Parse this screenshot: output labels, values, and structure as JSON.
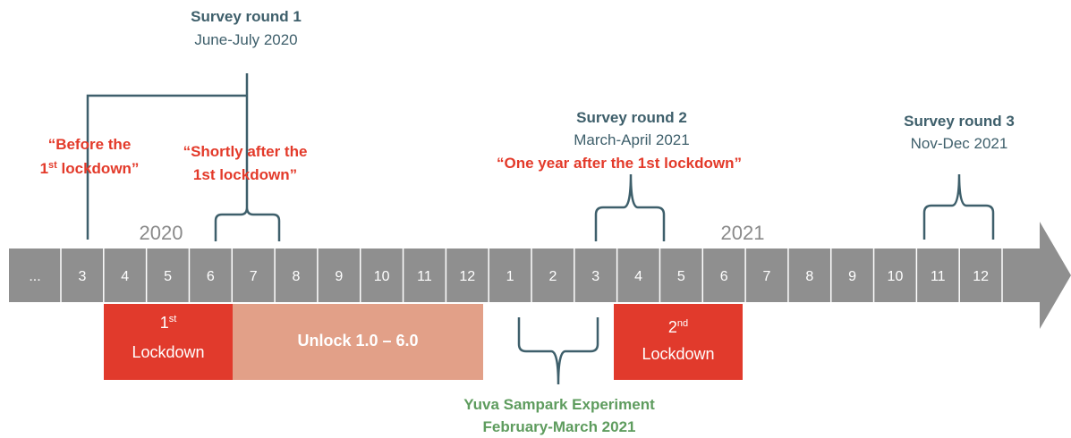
{
  "survey_round_1": {
    "title": "Survey round 1",
    "period": "June-July 2020"
  },
  "survey_round_2": {
    "title": "Survey round 2",
    "period": "March-April 2021",
    "note": "“One year after the 1st lockdown”"
  },
  "survey_round_3": {
    "title": "Survey round 3",
    "period": "Nov-Dec 2021"
  },
  "before_label": {
    "line1": "“Before the",
    "ordinal": "1",
    "sup": "st",
    "rest": " lockdown”"
  },
  "shortly_label": {
    "line1": "“Shortly after the",
    "line2": "1st lockdown”"
  },
  "years": [
    "2020",
    "2021"
  ],
  "months": [
    "...",
    3,
    4,
    5,
    6,
    7,
    8,
    9,
    10,
    11,
    12,
    1,
    2,
    3,
    4,
    5,
    6,
    7,
    8,
    9,
    10,
    11,
    12
  ],
  "first_lockdown": {
    "ordinal": "1",
    "sup": "st",
    "label": "Lockdown"
  },
  "unlock": "Unlock 1.0 – 6.0",
  "second_lockdown": {
    "ordinal": "2",
    "sup": "nd",
    "label": "Lockdown"
  },
  "experiment": {
    "title": "Yuva Sampark Experiment",
    "period": "February-March 2021"
  }
}
